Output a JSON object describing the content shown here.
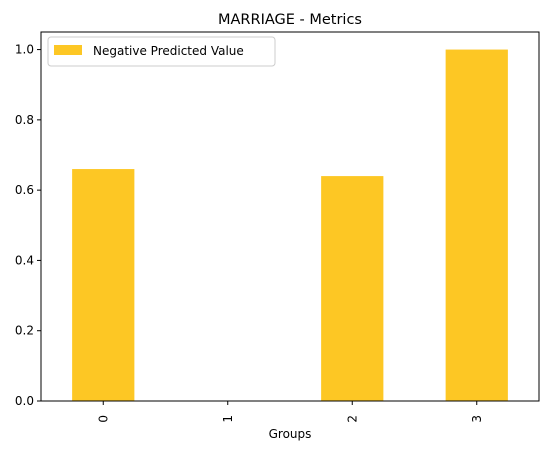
{
  "chart_data": {
    "type": "bar",
    "title": "MARRIAGE - Metrics",
    "xlabel": "Groups",
    "ylabel": "",
    "categories": [
      "0",
      "1",
      "2",
      "3"
    ],
    "series": [
      {
        "name": "Negative Predicted Value",
        "values": [
          0.66,
          0.0,
          0.64,
          1.0
        ],
        "color": "#fdc724"
      }
    ],
    "ylim": [
      0,
      1.05
    ],
    "yticks": [
      0.0,
      0.2,
      0.4,
      0.6,
      0.8,
      1.0
    ],
    "ytick_labels": [
      "0.0",
      "0.2",
      "0.4",
      "0.6",
      "0.8",
      "1.0"
    ],
    "xtick_rotation": "vertical",
    "grid": false,
    "legend_position": "upper left"
  }
}
